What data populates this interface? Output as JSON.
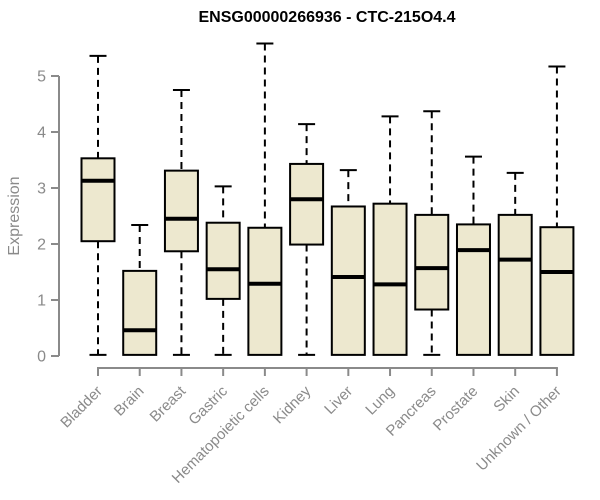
{
  "chart_data": {
    "type": "boxplot",
    "title": "ENSG00000266936 - CTC-215O4.4",
    "ylabel": "Expression",
    "xlabel": "",
    "ylim": [
      0,
      5.6
    ],
    "yticks": [
      0,
      1,
      2,
      3,
      4,
      5
    ],
    "grid": false,
    "legend": "none",
    "categories": [
      "Bladder",
      "Brain",
      "Breast",
      "Gastric",
      "Hematopoietic cells",
      "Kidney",
      "Liver",
      "Lung",
      "Pancreas",
      "Prostate",
      "Skin",
      "Unknown / Other"
    ],
    "series": [
      {
        "category": "Bladder",
        "whisker_low": 0.02,
        "q1": 2.05,
        "median": 3.13,
        "q3": 3.53,
        "whisker_high": 5.36
      },
      {
        "category": "Brain",
        "whisker_low": 0.02,
        "q1": 0.02,
        "median": 0.46,
        "q3": 1.52,
        "whisker_high": 2.34
      },
      {
        "category": "Breast",
        "whisker_low": 0.02,
        "q1": 1.87,
        "median": 2.45,
        "q3": 3.31,
        "whisker_high": 4.75
      },
      {
        "category": "Gastric",
        "whisker_low": 0.02,
        "q1": 1.02,
        "median": 1.55,
        "q3": 2.38,
        "whisker_high": 3.03
      },
      {
        "category": "Hematopoietic cells",
        "whisker_low": 0.02,
        "q1": 0.02,
        "median": 1.29,
        "q3": 2.29,
        "whisker_high": 5.58
      },
      {
        "category": "Kidney",
        "whisker_low": 0.02,
        "q1": 1.99,
        "median": 2.8,
        "q3": 3.43,
        "whisker_high": 4.14
      },
      {
        "category": "Liver",
        "whisker_low": 0.02,
        "q1": 0.02,
        "median": 1.41,
        "q3": 2.67,
        "whisker_high": 3.32
      },
      {
        "category": "Lung",
        "whisker_low": 0.02,
        "q1": 0.02,
        "median": 1.28,
        "q3": 2.72,
        "whisker_high": 4.28
      },
      {
        "category": "Pancreas",
        "whisker_low": 0.02,
        "q1": 0.83,
        "median": 1.57,
        "q3": 2.52,
        "whisker_high": 4.37
      },
      {
        "category": "Prostate",
        "whisker_low": 0.02,
        "q1": 0.02,
        "median": 1.89,
        "q3": 2.35,
        "whisker_high": 3.56
      },
      {
        "category": "Skin",
        "whisker_low": 0.02,
        "q1": 0.02,
        "median": 1.72,
        "q3": 2.52,
        "whisker_high": 3.27
      },
      {
        "category": "Unknown / Other",
        "whisker_low": 0.02,
        "q1": 0.02,
        "median": 1.5,
        "q3": 2.3,
        "whisker_high": 5.17
      }
    ],
    "colors": {
      "box_fill": "#EDE8CF",
      "box_border": "#000000",
      "median": "#000000",
      "whisker": "#000000",
      "axis": "#8A8A8A",
      "tick_label": "#8A8A8A",
      "title": "#000000",
      "background": "#FFFFFF"
    }
  }
}
